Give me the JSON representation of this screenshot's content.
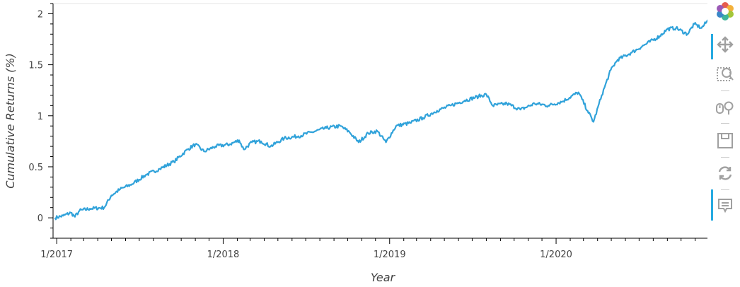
{
  "chart_data": {
    "type": "line",
    "xlabel": "Year",
    "ylabel": "Cumulative Returns (%)",
    "x_tick_labels": [
      "1/2017",
      "1/2018",
      "1/2019",
      "1/2020"
    ],
    "y_tick_labels": [
      "0",
      "0.5",
      "1",
      "1.5",
      "2"
    ],
    "ylim": [
      -0.2,
      2.1
    ],
    "xlim": [
      "2016-12-24",
      "2020-12-01"
    ],
    "grid": false,
    "series_color": "#30a2da",
    "series": [
      {
        "x": [
          "2016-12-28",
          "2017-01-15",
          "2017-02-01",
          "2017-02-10",
          "2017-02-20",
          "2017-03-15",
          "2017-04-15",
          "2017-05-01",
          "2017-05-20",
          "2017-06-15",
          "2017-07-15",
          "2017-08-15",
          "2017-09-15",
          "2017-10-15",
          "2017-11-01",
          "2017-11-20",
          "2017-12-15",
          "2018-01-15",
          "2018-02-05",
          "2018-02-15",
          "2018-03-05",
          "2018-03-25",
          "2018-04-15",
          "2018-05-15",
          "2018-06-15",
          "2018-07-15",
          "2018-08-15",
          "2018-09-15",
          "2018-10-05",
          "2018-10-25",
          "2018-11-15",
          "2018-12-05",
          "2018-12-24",
          "2019-01-15",
          "2019-02-15",
          "2019-03-15",
          "2019-04-15",
          "2019-05-15",
          "2019-06-15",
          "2019-07-15",
          "2019-08-01",
          "2019-08-15",
          "2019-09-15",
          "2019-10-15",
          "2019-11-15",
          "2019-12-15",
          "2020-01-15",
          "2020-02-19",
          "2020-03-10",
          "2020-03-23",
          "2020-04-10",
          "2020-04-30",
          "2020-05-15",
          "2020-06-15",
          "2020-07-15",
          "2020-08-15",
          "2020-09-01",
          "2020-09-20",
          "2020-10-15",
          "2020-10-30",
          "2020-11-15",
          "2020-11-30"
        ],
        "y": [
          0.0,
          0.02,
          0.05,
          0.01,
          0.07,
          0.09,
          0.1,
          0.22,
          0.28,
          0.33,
          0.42,
          0.48,
          0.55,
          0.67,
          0.72,
          0.65,
          0.7,
          0.72,
          0.76,
          0.67,
          0.74,
          0.75,
          0.7,
          0.78,
          0.8,
          0.84,
          0.88,
          0.9,
          0.84,
          0.74,
          0.83,
          0.85,
          0.74,
          0.9,
          0.93,
          0.98,
          1.05,
          1.1,
          1.15,
          1.19,
          1.21,
          1.1,
          1.12,
          1.06,
          1.12,
          1.1,
          1.14,
          1.23,
          1.05,
          0.94,
          1.2,
          1.45,
          1.55,
          1.62,
          1.7,
          1.78,
          1.85,
          1.86,
          1.8,
          1.9,
          1.86,
          1.94
        ]
      }
    ]
  },
  "toolbar": {
    "items": [
      "bokeh-logo-icon",
      "pan-icon",
      "box-zoom-icon",
      "wheel-zoom-icon",
      "save-icon",
      "reset-icon",
      "hover-icon"
    ]
  }
}
